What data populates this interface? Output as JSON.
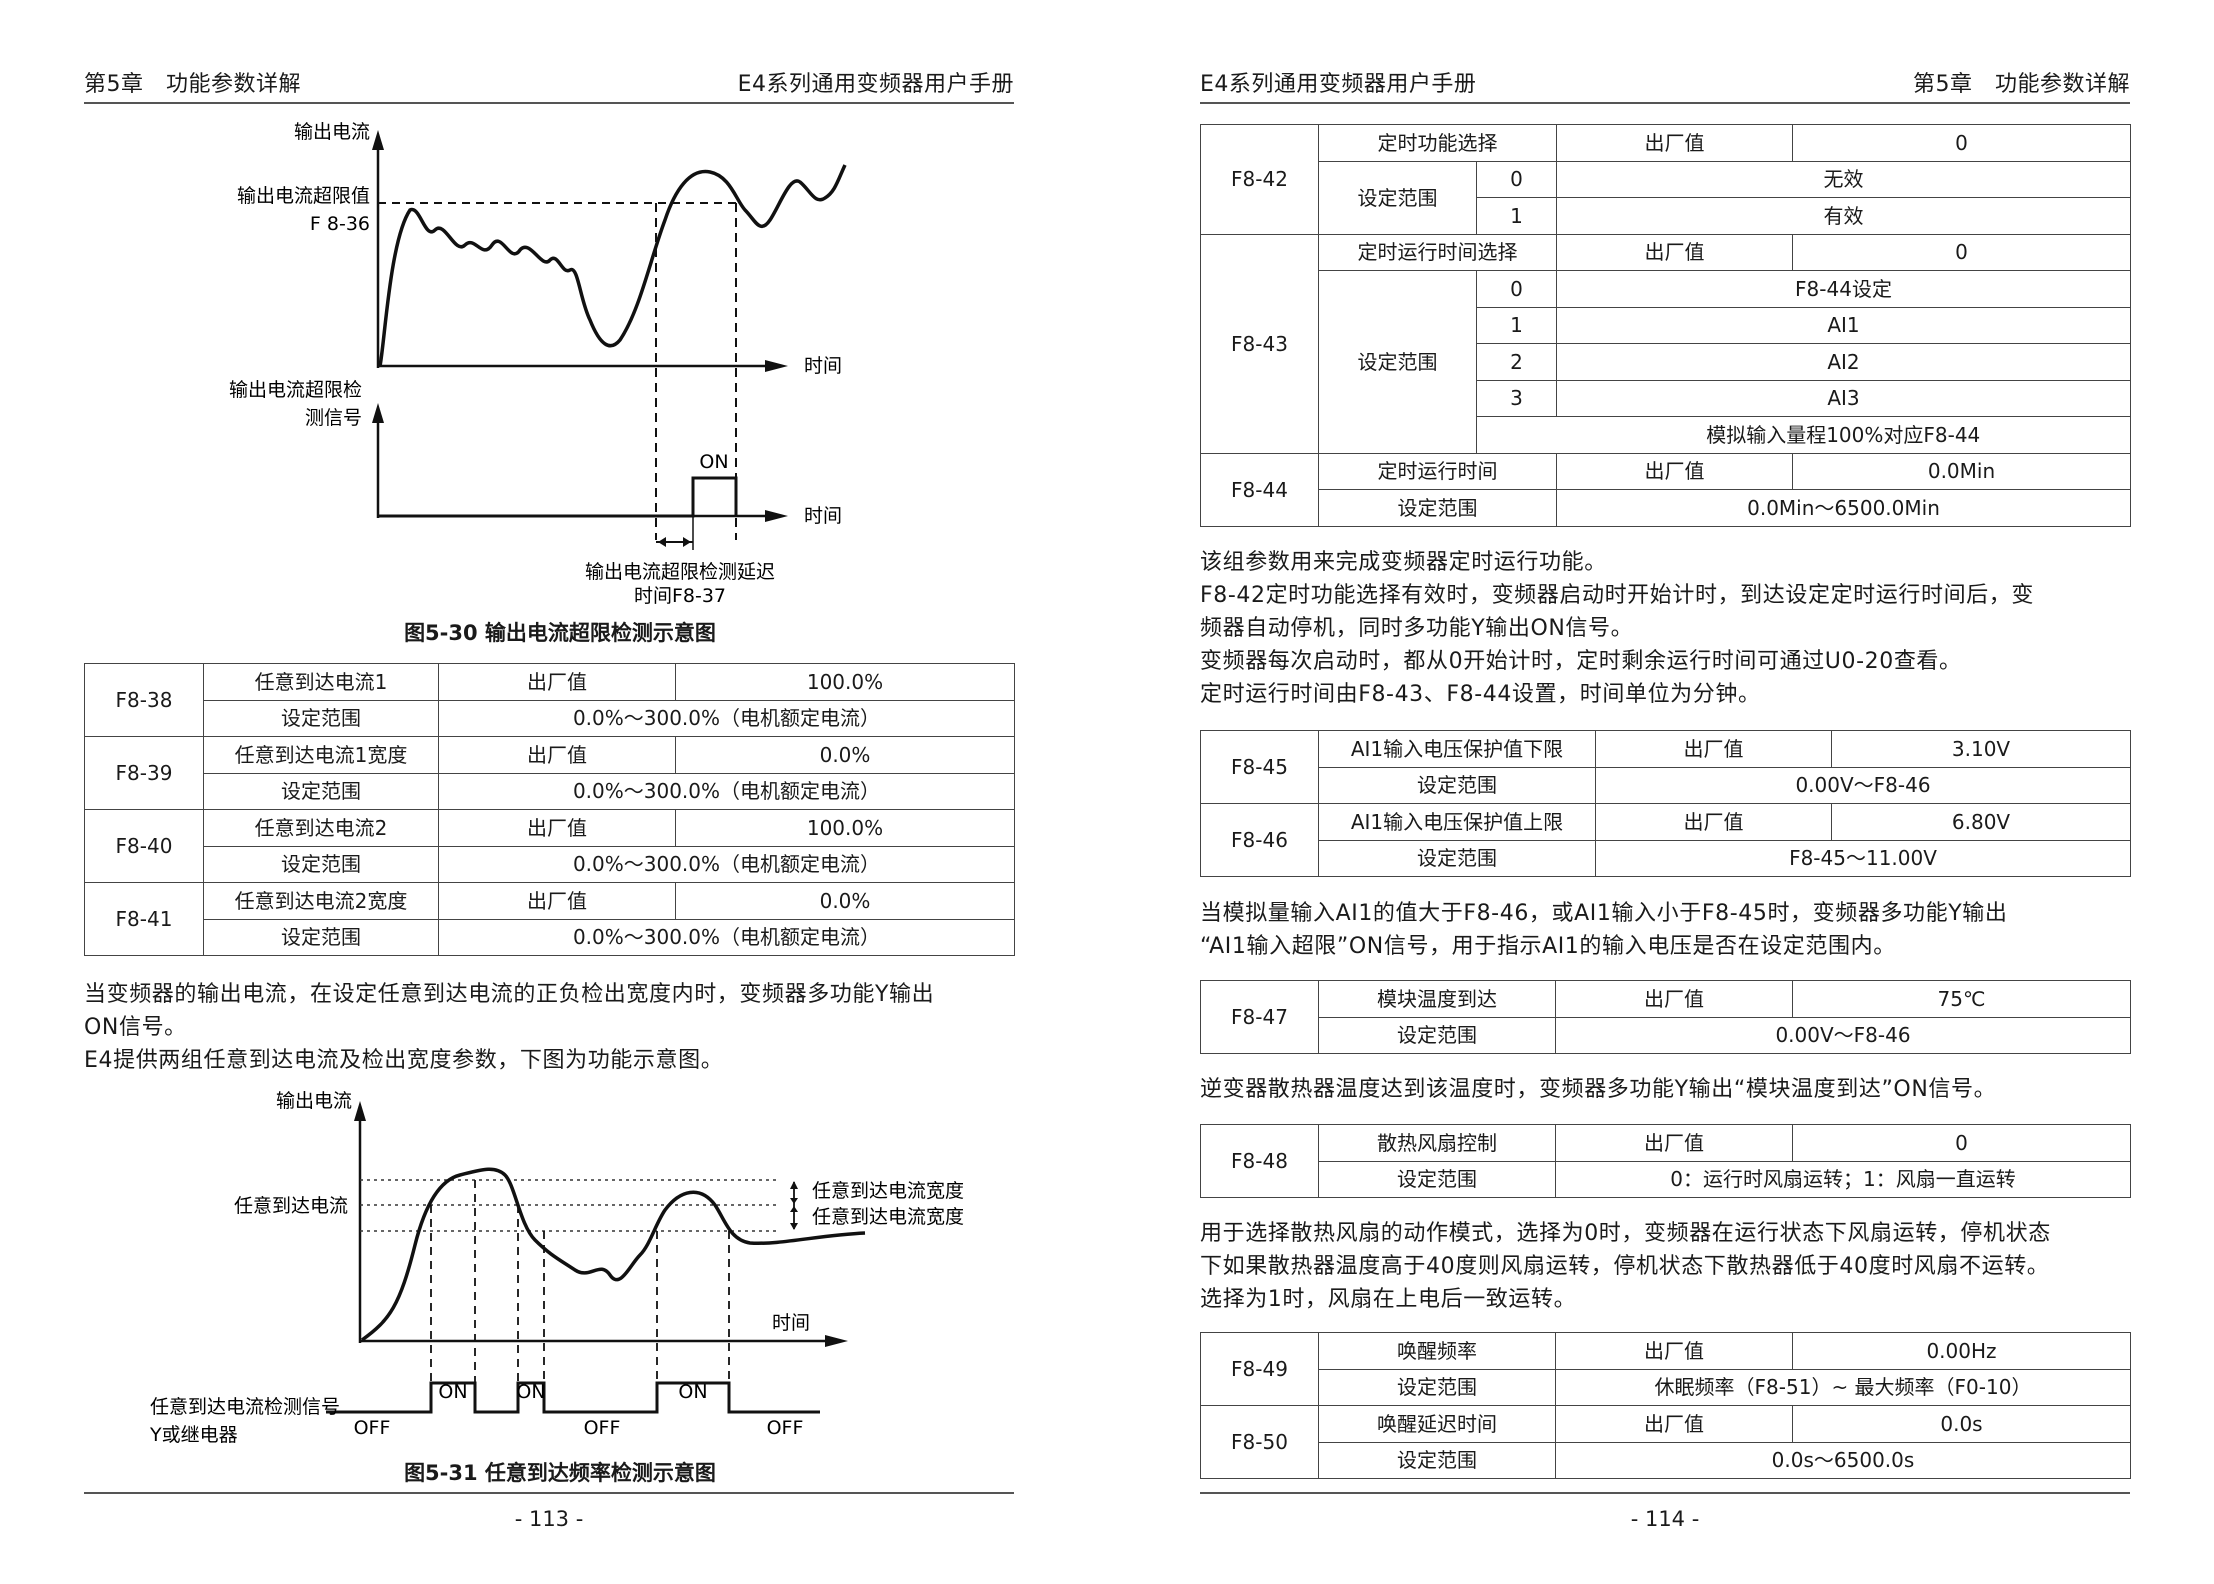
{
  "left_page": {
    "header_left": "第5章　功能参数详解",
    "header_right": "E4系列通用变频器用户手册",
    "page_number": "- 113 -",
    "figure1": {
      "caption": "图5-30 输出电流超限检测示意图",
      "label_current": "输出电流",
      "label_limit": "输出电流超限值",
      "label_param": "F 8-36",
      "label_time": "时间",
      "label_signal_line1": "输出电流超限检",
      "label_signal_line2": "测信号",
      "label_on": "ON",
      "label_time2": "时间",
      "label_delay_line1": "输出电流超限检测延迟",
      "label_delay_line2": "时间F8-37"
    },
    "table1": [
      {
        "code": "F8-38",
        "name": "任意到达电流1",
        "default_label": "出厂值",
        "default_value": "100.0%",
        "range_label": "设定范围",
        "range": "0.0%～300.0%（电机额定电流）"
      },
      {
        "code": "F8-39",
        "name": "任意到达电流1宽度",
        "default_label": "出厂值",
        "default_value": "0.0%",
        "range_label": "设定范围",
        "range": "0.0%～300.0%（电机额定电流）"
      },
      {
        "code": "F8-40",
        "name": "任意到达电流2",
        "default_label": "出厂值",
        "default_value": "100.0%",
        "range_label": "设定范围",
        "range": "0.0%～300.0%（电机额定电流）"
      },
      {
        "code": "F8-41",
        "name": "任意到达电流2宽度",
        "default_label": "出厂值",
        "default_value": "0.0%",
        "range_label": "设定范围",
        "range": "0.0%～300.0%（电机额定电流）"
      }
    ],
    "para1_line1": "当变频器的输出电流，在设定任意到达电流的正负检出宽度内时，变频器多功能Y输出",
    "para1_line2": "ON信号。",
    "para2": "E4提供两组任意到达电流及检出宽度参数，下图为功能示意图。",
    "figure2": {
      "caption": "图5-31 任意到达频率检测示意图",
      "label_current": "输出电流",
      "label_arrive": "任意到达电流",
      "label_width1": "任意到达电流宽度",
      "label_width2": "任意到达电流宽度",
      "label_time": "时间",
      "label_signal_line1": "任意到达电流检测信号",
      "label_signal_line2": "Y或继电器",
      "on1": "ON",
      "on2": "ON",
      "on3": "ON",
      "off1": "OFF",
      "off2": "OFF",
      "off3": "OFF"
    }
  },
  "right_page": {
    "header_left": "E4系列通用变频器用户手册",
    "header_right": "第5章　功能参数详解",
    "page_number": "- 114 -",
    "table_f842": {
      "code": "F8-42",
      "name": "定时功能选择",
      "default_label": "出厂值",
      "default_value": "0",
      "range_label": "设定范围",
      "options": [
        {
          "k": "0",
          "v": "无效"
        },
        {
          "k": "1",
          "v": "有效"
        }
      ]
    },
    "table_f843": {
      "code": "F8-43",
      "name": "定时运行时间选择",
      "default_label": "出厂值",
      "default_value": "0",
      "range_label": "设定范围",
      "options": [
        {
          "k": "0",
          "v": "F8-44设定"
        },
        {
          "k": "1",
          "v": "AI1"
        },
        {
          "k": "2",
          "v": "AI2"
        },
        {
          "k": "3",
          "v": "AI3"
        }
      ],
      "note": "模拟输入量程100%对应F8-44"
    },
    "table_f844": {
      "code": "F8-44",
      "name": "定时运行时间",
      "default_label": "出厂值",
      "default_value": "0.0Min",
      "range_label": "设定范围",
      "range": "0.0Min～6500.0Min"
    },
    "para_timer": [
      "该组参数用来完成变频器定时运行功能。",
      "F8-42定时功能选择有效时，变频器启动时开始计时，到达设定定时运行时间后，变",
      "频器自动停机，同时多功能Y输出ON信号。",
      "变频器每次启动时，都从0开始计时，定时剩余运行时间可通过U0-20查看。",
      "定时运行时间由F8-43、F8-44设置，时间单位为分钟。"
    ],
    "table_f845": [
      {
        "code": "F8-45",
        "name": "AI1输入电压保护值下限",
        "default_label": "出厂值",
        "default_value": "3.10V",
        "range_label": "设定范围",
        "range": "0.00V～F8-46"
      },
      {
        "code": "F8-46",
        "name": "AI1输入电压保护值上限",
        "default_label": "出厂值",
        "default_value": "6.80V",
        "range_label": "设定范围",
        "range": "F8-45～11.00V"
      }
    ],
    "para_ai1": [
      "当模拟量输入AI1的值大于F8-46，或AI1输入小于F8-45时，变频器多功能Y输出",
      "“AI1输入超限”ON信号，用于指示AI1的输入电压是否在设定范围内。"
    ],
    "table_f847": {
      "code": "F8-47",
      "name": "模块温度到达",
      "default_label": "出厂值",
      "default_value": "75℃",
      "range_label": "设定范围",
      "range": "0.00V～F8-46"
    },
    "para_temp": "逆变器散热器温度达到该温度时，变频器多功能Y输出“模块温度到达”ON信号。",
    "table_f848": {
      "code": "F8-48",
      "name": "散热风扇控制",
      "default_label": "出厂值",
      "default_value": "0",
      "range_label": "设定范围",
      "range": "0：运行时风扇运转；1：风扇一直运转"
    },
    "para_fan": [
      "用于选择散热风扇的动作模式，选择为0时，变频器在运行状态下风扇运转，停机状态",
      "下如果散热器温度高于40度则风扇运转，停机状态下散热器低于40度时风扇不运转。",
      "选择为1时，风扇在上电后一致运转。"
    ],
    "table_f849": [
      {
        "code": "F8-49",
        "name": "唤醒频率",
        "default_label": "出厂值",
        "default_value": "0.00Hz",
        "range_label": "设定范围",
        "range": "休眠频率（F8-51）~ 最大频率（F0-10）"
      },
      {
        "code": "F8-50",
        "name": "唤醒延迟时间",
        "default_label": "出厂值",
        "default_value": "0.0s",
        "range_label": "设定范围",
        "range": "0.0s～6500.0s"
      }
    ]
  }
}
